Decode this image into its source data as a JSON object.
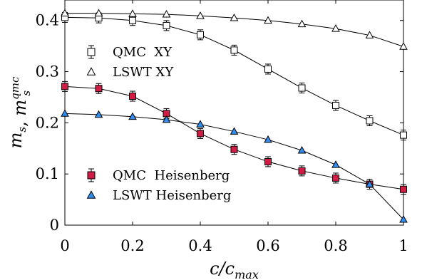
{
  "chart_data": {
    "type": "line",
    "xlabel": "c/c_max",
    "ylabel": "m_s, m_s^qmc",
    "xlim": [
      0,
      1
    ],
    "ylim": [
      0,
      0.44
    ],
    "grid": false,
    "xticks": [
      0,
      0.2,
      0.4,
      0.6,
      0.8,
      1
    ],
    "xtick_labels": [
      "0",
      "0.2",
      "0.4",
      "0.6",
      "0.8",
      "1"
    ],
    "yticks": [
      0,
      0.1,
      0.2,
      0.3,
      0.4
    ],
    "ytick_labels": [
      "0",
      "0.1",
      "0.2",
      "0.3",
      "0.4"
    ],
    "x": [
      0,
      0.1,
      0.2,
      0.3,
      0.4,
      0.5,
      0.6,
      0.7,
      0.8,
      0.9,
      1
    ],
    "series": [
      {
        "name": "QMC  XY",
        "marker": "square",
        "filled": false,
        "color": "#000000",
        "error_bars": true,
        "values": [
          0.406,
          0.405,
          0.4,
          0.39,
          0.372,
          0.342,
          0.305,
          0.268,
          0.234,
          0.204,
          0.176
        ]
      },
      {
        "name": "LSWT XY",
        "marker": "triangle",
        "filled": false,
        "color": "#000000",
        "error_bars": false,
        "values": [
          0.414,
          0.414,
          0.413,
          0.412,
          0.409,
          0.405,
          0.4,
          0.393,
          0.384,
          0.371,
          0.349
        ]
      },
      {
        "name": "QMC  Heisenberg",
        "marker": "square",
        "filled": true,
        "color": "#d11c46",
        "error_bars": true,
        "values": [
          0.271,
          0.267,
          0.252,
          0.218,
          0.179,
          0.148,
          0.124,
          0.106,
          0.092,
          0.08,
          0.07
        ]
      },
      {
        "name": "LSWT Heisenberg",
        "marker": "triangle",
        "filled": true,
        "color": "#2f8ff0",
        "error_bars": false,
        "values": [
          0.218,
          0.216,
          0.212,
          0.206,
          0.197,
          0.183,
          0.167,
          0.146,
          0.118,
          0.08,
          0.011
        ]
      }
    ],
    "legends": [
      {
        "placement": "upper-left",
        "entries": [
          "QMC  XY",
          "LSWT XY"
        ]
      },
      {
        "placement": "lower-left",
        "entries": [
          "QMC  Heisenberg",
          "LSWT Heisenberg"
        ]
      }
    ]
  }
}
